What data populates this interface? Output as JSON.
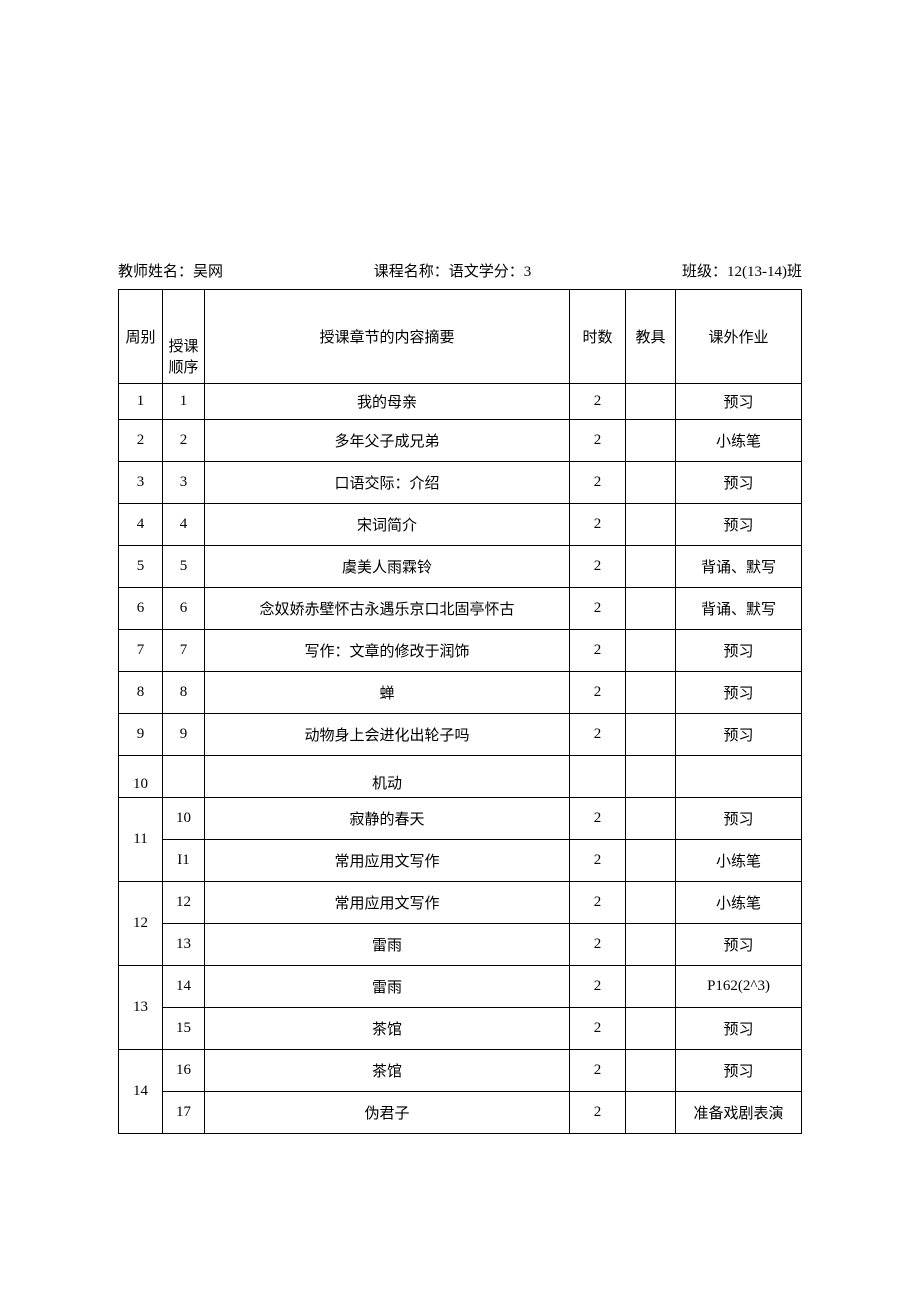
{
  "header": {
    "teacher_label": "教师姓名：",
    "teacher_name": "吴网",
    "course_label": "课程名称：",
    "course_name": "语文学分：3",
    "class_label": "班级：",
    "class_name": "12(13-14)班"
  },
  "columns": {
    "week": "周别",
    "seq_line1": "授课",
    "seq_line2": "顺序",
    "content": "授课章节的内容摘要",
    "hours": "时数",
    "tools": "教具",
    "homework": "课外作业"
  },
  "rows": [
    {
      "week": "1",
      "seq": "1",
      "content": "我的母亲",
      "hours": "2",
      "tools": "",
      "homework": "预习"
    },
    {
      "week": "2",
      "seq": "2",
      "content": "多年父子成兄弟",
      "hours": "2",
      "tools": "",
      "homework": "小练笔"
    },
    {
      "week": "3",
      "seq": "3",
      "content": "口语交际：介绍",
      "hours": "2",
      "tools": "",
      "homework": "预习"
    },
    {
      "week": "4",
      "seq": "4",
      "content": "宋词简介",
      "hours": "2",
      "tools": "",
      "homework": "预习"
    },
    {
      "week": "5",
      "seq": "5",
      "content": "虞美人雨霖铃",
      "hours": "2",
      "tools": "",
      "homework": "背诵、默写"
    },
    {
      "week": "6",
      "seq": "6",
      "content": "念奴娇赤壁怀古永遇乐京口北固亭怀古",
      "hours": "2",
      "tools": "",
      "homework": "背诵、默写"
    },
    {
      "week": "7",
      "seq": "7",
      "content": "写作：文章的修改于润饰",
      "hours": "2",
      "tools": "",
      "homework": "预习"
    },
    {
      "week": "8",
      "seq": "8",
      "content": "蝉",
      "hours": "2",
      "tools": "",
      "homework": "预习"
    },
    {
      "week": "9",
      "seq": "9",
      "content": "动物身上会进化出轮子吗",
      "hours": "2",
      "tools": "",
      "homework": "预习"
    },
    {
      "week": "10",
      "seq": "",
      "content": "机动",
      "hours": "",
      "tools": "",
      "homework": ""
    }
  ],
  "merged_rows": [
    {
      "week": "11",
      "sub": [
        {
          "seq": "10",
          "content": "寂静的春天",
          "hours": "2",
          "tools": "",
          "homework": "预习"
        },
        {
          "seq": "I1",
          "content": "常用应用文写作",
          "hours": "2",
          "tools": "",
          "homework": "小练笔"
        }
      ]
    },
    {
      "week": "12",
      "sub": [
        {
          "seq": "12",
          "content": "常用应用文写作",
          "hours": "2",
          "tools": "",
          "homework": "小练笔"
        },
        {
          "seq": "13",
          "content": "雷雨",
          "hours": "2",
          "tools": "",
          "homework": "预习"
        }
      ]
    },
    {
      "week": "13",
      "sub": [
        {
          "seq": "14",
          "content": "雷雨",
          "hours": "2",
          "tools": "",
          "homework": "P162(2^3)"
        },
        {
          "seq": "15",
          "content": "茶馆",
          "hours": "2",
          "tools": "",
          "homework": "预习"
        }
      ]
    },
    {
      "week": "14",
      "sub": [
        {
          "seq": "16",
          "content": "茶馆",
          "hours": "2",
          "tools": "",
          "homework": "预习"
        },
        {
          "seq": "17",
          "content": "伪君子",
          "hours": "2",
          "tools": "",
          "homework": "准备戏剧表演"
        }
      ]
    }
  ]
}
